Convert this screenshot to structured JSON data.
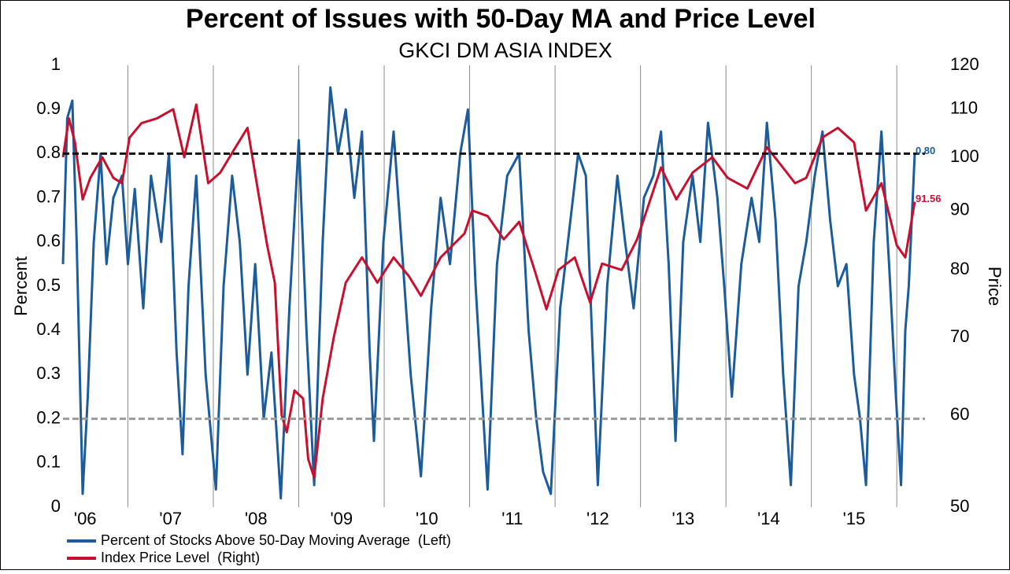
{
  "chart_data": {
    "type": "line",
    "title": "Percent of Issues with 50-Day MA and Price Level",
    "subtitle": "GKCI DM ASIA INDEX",
    "ylabel": "Percent",
    "y2label": "Price",
    "xlim": [
      2006.24,
      2016.33
    ],
    "xticks": [
      {
        "value": 2006.5,
        "label": "'06"
      },
      {
        "value": 2007.5,
        "label": "'07"
      },
      {
        "value": 2008.5,
        "label": "'08"
      },
      {
        "value": 2009.5,
        "label": "'09"
      },
      {
        "value": 2010.5,
        "label": "'10"
      },
      {
        "value": 2011.5,
        "label": "'11"
      },
      {
        "value": 2012.5,
        "label": "'12"
      },
      {
        "value": 2013.5,
        "label": "'13"
      },
      {
        "value": 2014.5,
        "label": "'14"
      },
      {
        "value": 2015.5,
        "label": "'15"
      }
    ],
    "xgrid": [
      2007,
      2008,
      2009,
      2010,
      2011,
      2012,
      2013,
      2014,
      2015,
      2016
    ],
    "ylim": [
      0,
      1
    ],
    "yticks": [
      0,
      0.1,
      0.2,
      0.3,
      0.4,
      0.5,
      0.6,
      0.7,
      0.8,
      0.9,
      1
    ],
    "y2lim": [
      50,
      120
    ],
    "y2ticks": [
      50,
      60,
      70,
      80,
      90,
      100,
      110,
      120
    ],
    "y2log": true,
    "hlines": [
      {
        "value": 0.8,
        "color": "#111111"
      },
      {
        "value": 0.2,
        "color": "#9a9a9a"
      }
    ],
    "series": [
      {
        "name": "Percent of Stocks Above 50-Day Moving Average  (Left)",
        "color": "#1c5c9a",
        "x": [
          2006.24,
          2006.29,
          2006.35,
          2006.4,
          2006.47,
          2006.53,
          2006.6,
          2006.68,
          2006.75,
          2006.83,
          2006.93,
          2007.0,
          2007.08,
          2007.18,
          2007.27,
          2007.39,
          2007.48,
          2007.57,
          2007.64,
          2007.71,
          2007.8,
          2007.91,
          2008.03,
          2008.12,
          2008.22,
          2008.31,
          2008.4,
          2008.49,
          2008.59,
          2008.68,
          2008.79,
          2008.89,
          2009.0,
          2009.09,
          2009.18,
          2009.28,
          2009.37,
          2009.46,
          2009.55,
          2009.65,
          2009.74,
          2009.83,
          2009.88,
          2009.99,
          2010.11,
          2010.22,
          2010.31,
          2010.43,
          2010.55,
          2010.66,
          2010.77,
          2010.89,
          2010.98,
          2011.07,
          2011.21,
          2011.32,
          2011.44,
          2011.58,
          2011.69,
          2011.78,
          2011.86,
          2011.95,
          2012.06,
          2012.15,
          2012.27,
          2012.36,
          2012.5,
          2012.61,
          2012.73,
          2012.82,
          2012.92,
          2013.04,
          2013.15,
          2013.24,
          2013.33,
          2013.41,
          2013.5,
          2013.61,
          2013.7,
          2013.79,
          2013.9,
          2013.98,
          2014.07,
          2014.18,
          2014.3,
          2014.39,
          2014.48,
          2014.58,
          2014.67,
          2014.76,
          2014.85,
          2014.94,
          2015.04,
          2015.13,
          2015.22,
          2015.31,
          2015.41,
          2015.5,
          2015.57,
          2015.64,
          2015.73,
          2015.82,
          2015.91,
          2015.99,
          2016.05,
          2016.1,
          2016.14,
          2016.21
        ],
        "values": [
          0.55,
          0.88,
          0.92,
          0.6,
          0.03,
          0.25,
          0.6,
          0.8,
          0.55,
          0.7,
          0.75,
          0.55,
          0.72,
          0.45,
          0.75,
          0.6,
          0.8,
          0.35,
          0.12,
          0.5,
          0.75,
          0.3,
          0.04,
          0.5,
          0.75,
          0.6,
          0.3,
          0.55,
          0.2,
          0.35,
          0.02,
          0.45,
          0.83,
          0.4,
          0.05,
          0.6,
          0.95,
          0.8,
          0.9,
          0.7,
          0.85,
          0.35,
          0.15,
          0.6,
          0.85,
          0.55,
          0.3,
          0.07,
          0.45,
          0.7,
          0.55,
          0.8,
          0.9,
          0.5,
          0.04,
          0.55,
          0.75,
          0.8,
          0.4,
          0.2,
          0.08,
          0.03,
          0.45,
          0.6,
          0.8,
          0.75,
          0.05,
          0.5,
          0.75,
          0.6,
          0.45,
          0.7,
          0.75,
          0.85,
          0.55,
          0.15,
          0.6,
          0.75,
          0.6,
          0.87,
          0.7,
          0.5,
          0.25,
          0.55,
          0.7,
          0.6,
          0.87,
          0.65,
          0.3,
          0.05,
          0.5,
          0.6,
          0.75,
          0.85,
          0.65,
          0.5,
          0.55,
          0.3,
          0.2,
          0.05,
          0.6,
          0.85,
          0.55,
          0.25,
          0.05,
          0.4,
          0.5,
          0.8
        ]
      },
      {
        "name": "Index Price Level  (Right)",
        "color": "#c8102e",
        "axis": "y2",
        "x": [
          2006.24,
          2006.31,
          2006.38,
          2006.47,
          2006.56,
          2006.7,
          2006.83,
          2006.93,
          2007.02,
          2007.16,
          2007.34,
          2007.53,
          2007.66,
          2007.8,
          2007.94,
          2008.08,
          2008.26,
          2008.4,
          2008.54,
          2008.63,
          2008.72,
          2008.8,
          2008.86,
          2008.95,
          2009.05,
          2009.11,
          2009.18,
          2009.28,
          2009.41,
          2009.55,
          2009.74,
          2009.92,
          2010.11,
          2010.29,
          2010.43,
          2010.66,
          2010.94,
          2011.03,
          2011.21,
          2011.4,
          2011.58,
          2011.76,
          2011.9,
          2012.04,
          2012.23,
          2012.41,
          2012.55,
          2012.78,
          2012.96,
          2013.24,
          2013.42,
          2013.61,
          2013.84,
          2014.02,
          2014.25,
          2014.48,
          2014.62,
          2014.81,
          2014.94,
          2015.13,
          2015.31,
          2015.5,
          2015.64,
          2015.82,
          2016.0,
          2016.1,
          2016.21
        ],
        "values": [
          100,
          108,
          103,
          92,
          96,
          100,
          96,
          95,
          104,
          107,
          108,
          110,
          100,
          111,
          95,
          97,
          102,
          106,
          92,
          84,
          78,
          60,
          58,
          63,
          62,
          55,
          53,
          62,
          70,
          78,
          82,
          78,
          82,
          79,
          76,
          82,
          86,
          90,
          89,
          85,
          88,
          80,
          74,
          80,
          82,
          75,
          81,
          80,
          85,
          98,
          92,
          97,
          100,
          96,
          94,
          102,
          99,
          95,
          96,
          104,
          106,
          103,
          90,
          95,
          84,
          82,
          91.56
        ]
      }
    ],
    "annotations": [
      {
        "series": 0,
        "value": 0.8,
        "label": "0.80"
      },
      {
        "series": 1,
        "value": 91.56,
        "label": "91.56"
      }
    ]
  }
}
